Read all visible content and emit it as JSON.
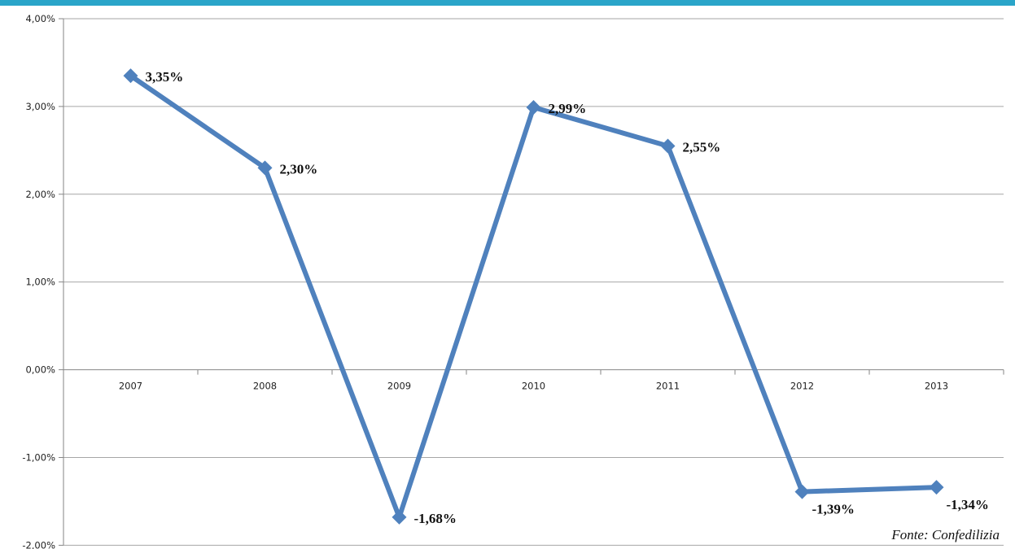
{
  "colors": {
    "top_bar": "#2aa5c9",
    "series": "#4f81bd",
    "gridline": "#a6a6a6",
    "axis": "#868686"
  },
  "source": "Fonte: Confedilizia",
  "chart_data": {
    "type": "line",
    "title": "",
    "xlabel": "",
    "ylabel": "",
    "categories": [
      "2007",
      "2008",
      "2009",
      "2010",
      "2011",
      "2012",
      "2013"
    ],
    "series": [
      {
        "values": [
          3.35,
          2.3,
          -1.68,
          2.99,
          2.55,
          -1.39,
          -1.34
        ],
        "labels": [
          "3,35%",
          "2,30%",
          "-1,68%",
          "2,99%",
          "2,55%",
          "-1,39%",
          "-1,34%"
        ]
      }
    ],
    "ylim": [
      -2,
      4
    ],
    "yticks": [
      4,
      3,
      2,
      1,
      0,
      -1,
      -2
    ],
    "ytick_labels": [
      "4,00%",
      "3,00%",
      "2,00%",
      "1,00%",
      "0,00%",
      "-1,00%",
      "-2,00%"
    ],
    "grid": true,
    "legend": "none",
    "marker": "diamond",
    "label_placement": [
      "right",
      "right",
      "right",
      "right",
      "right",
      "below",
      "below"
    ]
  }
}
